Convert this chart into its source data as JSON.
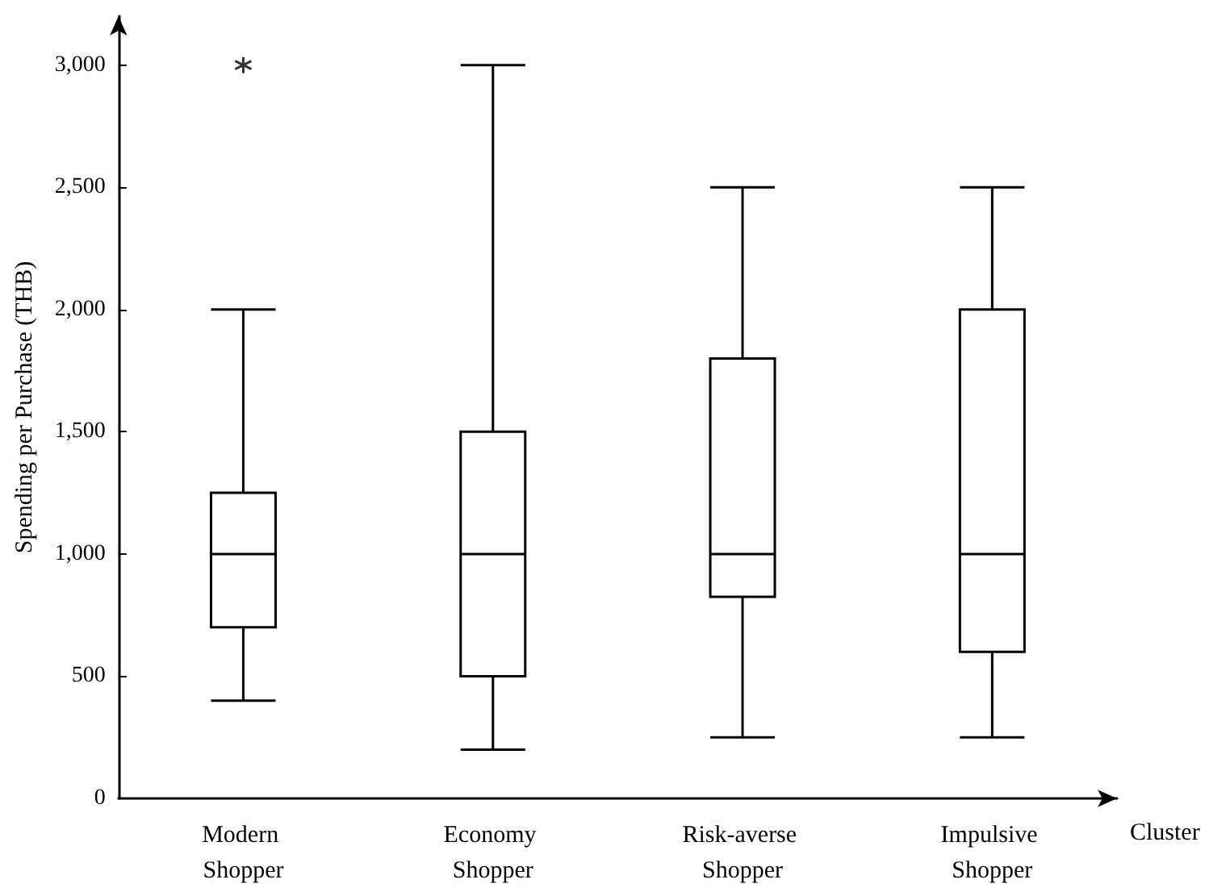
{
  "chart_data": {
    "type": "box",
    "xlabel": "Cluster",
    "ylabel": "Spending per Purchase (THB)",
    "categories": [
      "Modern Shopper",
      "Economy Shopper",
      "Risk-averse Shopper",
      "Impulsive Shopper"
    ],
    "boxes": [
      {
        "low": 400,
        "q1": 700,
        "median": 1000,
        "q3": 1250,
        "high": 2000,
        "outliers": [
          3000
        ]
      },
      {
        "low": 200,
        "q1": 500,
        "median": 1000,
        "q3": 1500,
        "high": 3000
      },
      {
        "low": 250,
        "q1": 825,
        "median": 1000,
        "q3": 1800,
        "high": 2500
      },
      {
        "low": 250,
        "q1": 600,
        "median": 1000,
        "q3": 2000,
        "high": 2500
      }
    ],
    "color": "#000000",
    "ylim": [
      0,
      3200
    ],
    "yticks": [
      {
        "value": 0,
        "label": "0"
      },
      {
        "value": 500,
        "label": "500"
      },
      {
        "value": 1000,
        "label": "1,000"
      },
      {
        "value": 1500,
        "label": "1,500"
      },
      {
        "value": 2000,
        "label": "2,000"
      },
      {
        "value": 2500,
        "label": "2,500"
      },
      {
        "value": 3000,
        "label": "3,000"
      }
    ],
    "grid": false
  }
}
